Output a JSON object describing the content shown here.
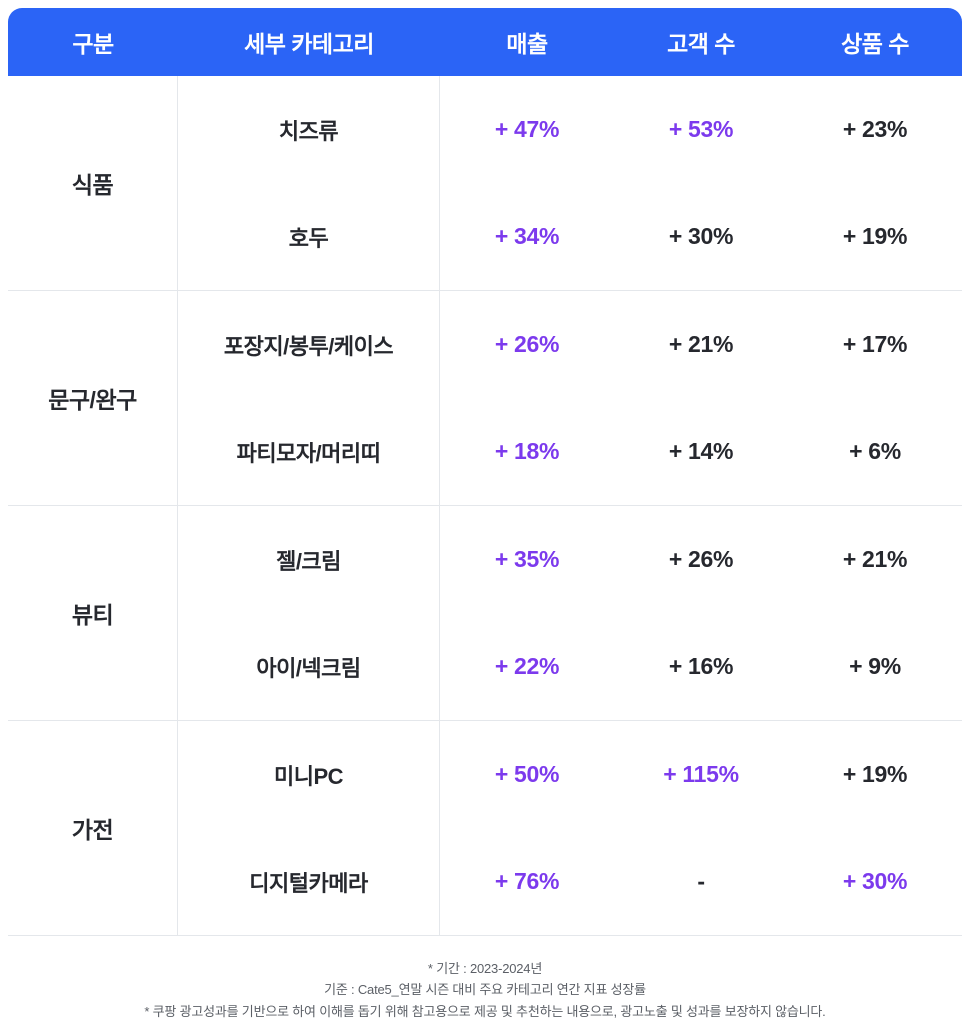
{
  "colors": {
    "header_bg": "#2B64F6",
    "highlight": "#7C3AED",
    "text_dark": "#26282E",
    "divider": "#E4E7EB",
    "footnote_gray": "#5B5F66"
  },
  "chart_data": {
    "type": "table",
    "columns": [
      "구분",
      "세부 카테고리",
      "매출",
      "고객 수",
      "상품 수"
    ],
    "groups": [
      {
        "label": "식품",
        "rows": [
          {
            "subcategory": "치즈류",
            "sales": "+ 47%",
            "sales_hl": true,
            "customers": "+ 53%",
            "customers_hl": true,
            "products": "+ 23%",
            "products_hl": false
          },
          {
            "subcategory": "호두",
            "sales": "+ 34%",
            "sales_hl": true,
            "customers": "+ 30%",
            "customers_hl": false,
            "products": "+ 19%",
            "products_hl": false
          }
        ]
      },
      {
        "label": "문구/완구",
        "rows": [
          {
            "subcategory": "포장지/봉투/케이스",
            "sales": "+ 26%",
            "sales_hl": true,
            "customers": "+ 21%",
            "customers_hl": false,
            "products": "+ 17%",
            "products_hl": false
          },
          {
            "subcategory": "파티모자/머리띠",
            "sales": "+ 18%",
            "sales_hl": true,
            "customers": "+ 14%",
            "customers_hl": false,
            "products": "+ 6%",
            "products_hl": false
          }
        ]
      },
      {
        "label": "뷰티",
        "rows": [
          {
            "subcategory": "젤/크림",
            "sales": "+ 35%",
            "sales_hl": true,
            "customers": "+ 26%",
            "customers_hl": false,
            "products": "+ 21%",
            "products_hl": false
          },
          {
            "subcategory": "아이/넥크림",
            "sales": "+ 22%",
            "sales_hl": true,
            "customers": "+ 16%",
            "customers_hl": false,
            "products": "+ 9%",
            "products_hl": false
          }
        ]
      },
      {
        "label": "가전",
        "rows": [
          {
            "subcategory": "미니PC",
            "sales": "+ 50%",
            "sales_hl": true,
            "customers": "+ 115%",
            "customers_hl": true,
            "products": "+ 19%",
            "products_hl": false
          },
          {
            "subcategory": "디지털카메라",
            "sales": "+ 76%",
            "sales_hl": true,
            "customers": "-",
            "customers_hl": false,
            "products": "+ 30%",
            "products_hl": true
          }
        ]
      }
    ],
    "footnotes": [
      "* 기간 : 2023-2024년",
      "기준 : Cate5_연말 시즌 대비 주요 카테고리 연간 지표 성장률",
      "* 쿠팡 광고성과를 기반으로 하여 이해를 돕기 위해 참고용으로 제공 및 추천하는 내용으로, 광고노출 및 성과를 보장하지 않습니다."
    ]
  }
}
